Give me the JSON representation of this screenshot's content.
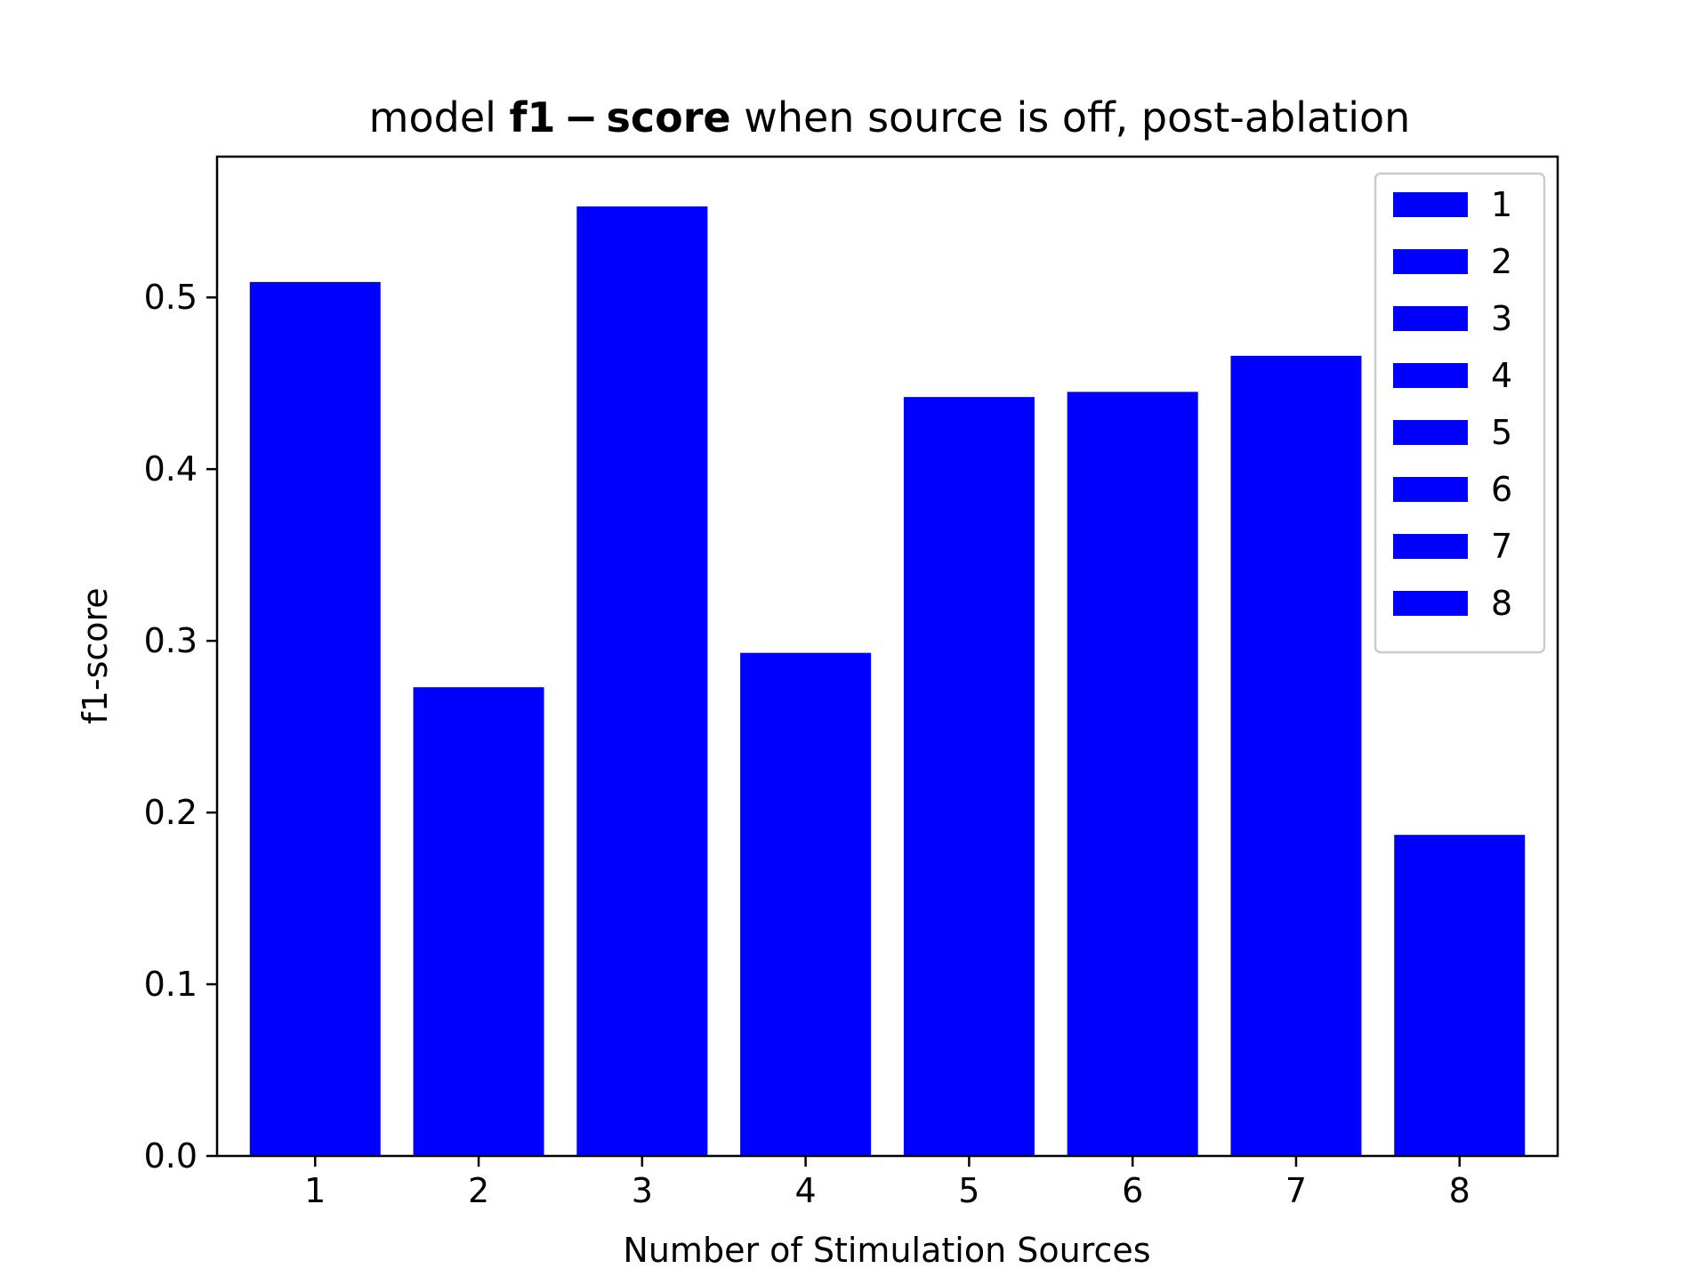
{
  "chart_data": {
    "type": "bar",
    "title": {
      "prefix": "model ",
      "bold": "f1 − score",
      "suffix": " when source is off, post-ablation"
    },
    "xlabel": "Number of Stimulation Sources",
    "ylabel": "f1-score",
    "categories": [
      "1",
      "2",
      "3",
      "4",
      "5",
      "6",
      "7",
      "8"
    ],
    "values": [
      0.509,
      0.273,
      0.553,
      0.293,
      0.442,
      0.445,
      0.466,
      0.187
    ],
    "ylim": [
      0,
      0.582
    ],
    "yticks": [
      "0.0",
      "0.1",
      "0.2",
      "0.3",
      "0.4",
      "0.5"
    ],
    "bar_color": "#0000ff",
    "grid": false,
    "legend": {
      "placement": "top-right",
      "entries": [
        "1",
        "2",
        "3",
        "4",
        "5",
        "6",
        "7",
        "8"
      ]
    }
  }
}
